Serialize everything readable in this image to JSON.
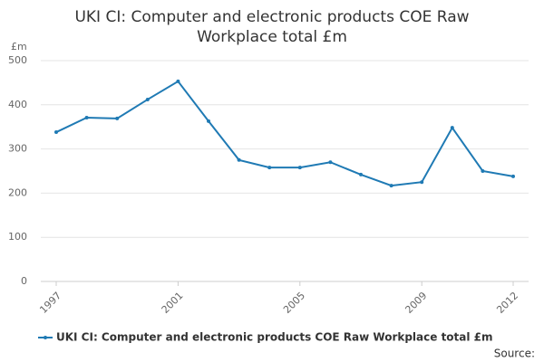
{
  "chart_data": {
    "type": "line",
    "title": "UKI CI: Computer and electronic products COE Raw Workplace total £m",
    "y_label": "£m",
    "source": "Source:",
    "x": [
      1997,
      1998,
      1999,
      2000,
      2001,
      2002,
      2003,
      2004,
      2005,
      2006,
      2007,
      2008,
      2009,
      2010,
      2011,
      2012
    ],
    "series": [
      {
        "name": "UKI CI: Computer and electronic products COE Raw Workplace total £m",
        "color": "#1f7ab4",
        "values": [
          338,
          371,
          369,
          412,
          453,
          363,
          275,
          258,
          258,
          270,
          242,
          217,
          225,
          348,
          250,
          238
        ]
      }
    ],
    "xlim": [
      1997,
      2012
    ],
    "xticks": [
      1997,
      2001,
      2005,
      2009,
      2012
    ],
    "ylim": [
      0,
      500
    ],
    "yticks": [
      0,
      100,
      200,
      300,
      400,
      500
    ],
    "grid": true,
    "legend": "bottom"
  }
}
